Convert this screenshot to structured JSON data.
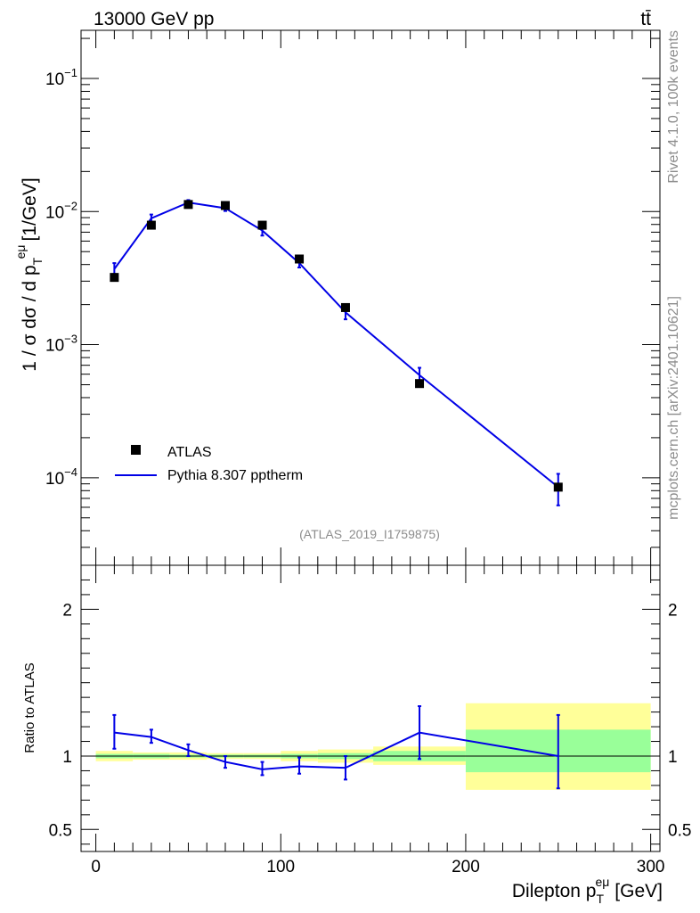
{
  "header": {
    "energy_label": "13000 GeV pp",
    "process_label": "tt̄",
    "side_label_top": "Rivet 4.1.0,  100k events",
    "side_label_bottom": "mcplots.cern.ch [arXiv:2401.10621]",
    "analysis_label": "(ATLAS_2019_I1759875)"
  },
  "chart_data": [
    {
      "type": "scatter",
      "panel": "main",
      "title": "",
      "xlabel": "Dilepton p_T^eμ [GeV]",
      "ylabel": "1 / σ  dσ / d p_T^eμ [1/GeV]",
      "ylabel_prefix": "1 / σ  dσ / d p",
      "ylabel_suffix": "[1/GeV]",
      "yscale": "log",
      "xlim": [
        -8,
        305
      ],
      "ylim": [
        2.2e-05,
        0.23
      ],
      "y_ticks": [
        {
          "value": 0.1,
          "base": "10",
          "exp": "−1"
        },
        {
          "value": 0.01,
          "base": "10",
          "exp": "−2"
        },
        {
          "value": 0.001,
          "base": "10",
          "exp": "−3"
        },
        {
          "value": 0.0001,
          "base": "10",
          "exp": "−4"
        }
      ],
      "legend_position": "bottom-left",
      "series": [
        {
          "name": "ATLAS",
          "kind": "markers",
          "color": "#000000",
          "x": [
            10,
            30,
            50,
            70,
            90,
            110,
            135,
            175,
            250
          ],
          "y": [
            0.0032,
            0.0079,
            0.0113,
            0.0111,
            0.0079,
            0.0044,
            0.0019,
            0.00051,
            8.5e-05
          ]
        },
        {
          "name": "Pythia 8.307 pptherm",
          "kind": "line",
          "color": "#0000e6",
          "x": [
            10,
            30,
            50,
            70,
            90,
            110,
            135,
            175,
            250
          ],
          "y": [
            0.0037,
            0.0089,
            0.0117,
            0.0106,
            0.0072,
            0.0041,
            0.00175,
            0.00059,
            8.5e-05
          ],
          "y_low": [
            0.0034,
            0.0084,
            0.0112,
            0.0101,
            0.0066,
            0.0038,
            0.00155,
            0.00052,
            6.2e-05
          ],
          "y_high": [
            0.0041,
            0.0095,
            0.0122,
            0.0112,
            0.0078,
            0.0045,
            0.00195,
            0.00067,
            0.000107
          ]
        }
      ]
    },
    {
      "type": "line",
      "panel": "ratio",
      "ylabel": "Ratio to ATLAS",
      "xlim": [
        -8,
        305
      ],
      "ylim": [
        0.35,
        2.3
      ],
      "y_ticks": [
        "0.5",
        "1",
        "2"
      ],
      "x_ticks": [
        "0",
        "100",
        "200",
        "300"
      ],
      "bands": {
        "bin_edges": [
          0,
          20,
          40,
          60,
          80,
          100,
          120,
          150,
          200,
          300
        ],
        "green_low": [
          0.985,
          0.985,
          0.99,
          0.99,
          0.99,
          0.985,
          0.98,
          0.965,
          0.89
        ],
        "green_high": [
          1.015,
          1.015,
          1.01,
          1.01,
          1.01,
          1.015,
          1.02,
          1.035,
          1.18
        ],
        "yellow_low": [
          0.965,
          0.975,
          0.975,
          0.98,
          0.98,
          0.965,
          0.955,
          0.94,
          0.77
        ],
        "yellow_high": [
          1.035,
          1.025,
          1.025,
          1.02,
          1.02,
          1.035,
          1.045,
          1.065,
          1.36
        ],
        "green_color": "#99ff99",
        "yellow_color": "#ffff99"
      },
      "series": [
        {
          "name": "Pythia 8.307 pptherm / ATLAS",
          "color": "#0000e6",
          "x": [
            10,
            30,
            50,
            70,
            90,
            110,
            135,
            175,
            250
          ],
          "y": [
            1.16,
            1.13,
            1.04,
            0.96,
            0.91,
            0.93,
            0.92,
            1.16,
            1.0
          ],
          "y_low": [
            1.05,
            1.09,
            1.0,
            0.92,
            0.87,
            0.88,
            0.84,
            0.98,
            0.78
          ],
          "y_high": [
            1.28,
            1.18,
            1.08,
            1.0,
            0.96,
            0.99,
            1.0,
            1.34,
            1.28
          ]
        }
      ]
    }
  ]
}
